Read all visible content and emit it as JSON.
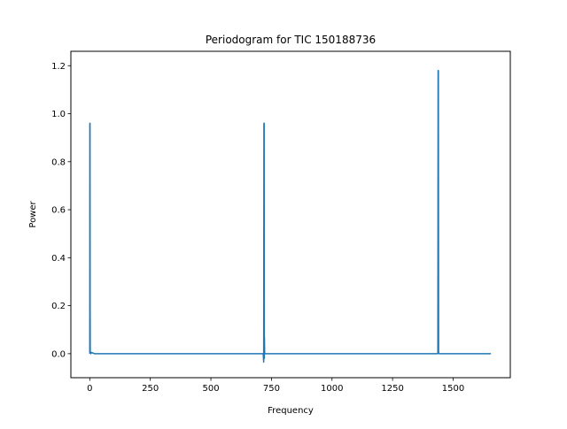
{
  "chart_data": {
    "type": "line",
    "title": "Periodogram for TIC 150188736",
    "xlabel": "Frequency",
    "ylabel": "Power",
    "xlim": [
      -78,
      1736
    ],
    "ylim": [
      -0.1,
      1.26
    ],
    "xticks": [
      0,
      250,
      500,
      750,
      1000,
      1250,
      1500
    ],
    "xtick_labels": [
      "0",
      "250",
      "500",
      "750",
      "1000",
      "1250",
      "1500"
    ],
    "yticks": [
      0.0,
      0.2,
      0.4,
      0.6,
      0.8,
      1.0,
      1.2
    ],
    "ytick_labels": [
      "0.0",
      "0.2",
      "0.4",
      "0.6",
      "0.8",
      "1.0",
      "1.2"
    ],
    "grid": false,
    "legend": "none",
    "series": [
      {
        "color": "#1f77b4",
        "x": [
          0,
          0.3,
          0.6,
          1,
          1.5,
          2,
          4,
          8,
          20,
          100,
          300,
          500,
          716,
          718,
          719,
          719.5,
          720,
          720.5,
          721,
          722,
          724,
          760,
          1000,
          1200,
          1400,
          1436,
          1437,
          1438,
          1438.5,
          1439,
          1440,
          1442,
          1500,
          1600,
          1656
        ],
        "y": [
          0.0,
          0.96,
          0.5,
          0.96,
          0.2,
          0.01,
          0.0,
          0.005,
          0.0,
          0.0,
          0.0,
          0.0,
          0.0,
          -0.035,
          0.96,
          0.3,
          0.96,
          -0.02,
          0.07,
          0.0,
          0.0,
          0.0,
          0.0,
          0.0,
          0.0,
          0.0,
          0.005,
          1.18,
          0.6,
          1.18,
          0.005,
          0.0,
          0.0,
          0.0,
          0.0
        ]
      }
    ]
  }
}
